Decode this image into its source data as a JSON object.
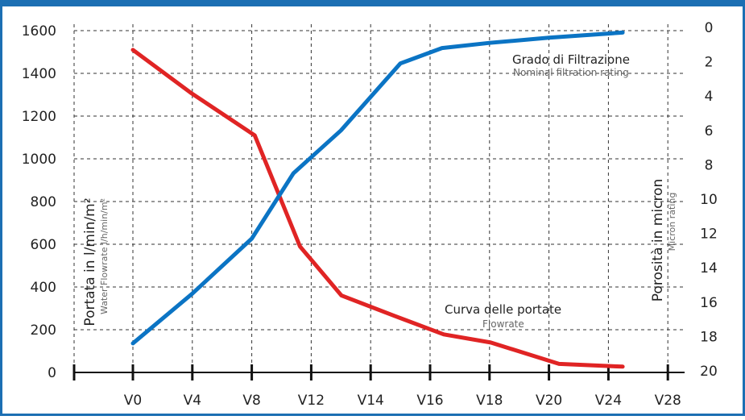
{
  "chart_data": {
    "type": "line",
    "categories": [
      "V0",
      "V4",
      "V8",
      "V12",
      "V14",
      "V16",
      "V18",
      "V20",
      "V24",
      "V28"
    ],
    "yleft": {
      "label": "Portata in l/min/m²",
      "sublabel": "Water Flowrate l/h/min/m²",
      "ticks": [
        0,
        200,
        400,
        600,
        800,
        1000,
        1200,
        1400,
        1600
      ],
      "ylim": [
        0,
        1600
      ]
    },
    "yright": {
      "label": "Porosità in micron",
      "sublabel": "Micron rating",
      "ticks": [
        0,
        2,
        4,
        6,
        8,
        10,
        12,
        14,
        16,
        18,
        20
      ],
      "ylim": [
        0,
        20
      ],
      "inverted": true
    },
    "series": [
      {
        "name": "Curva delle portate",
        "subname": "Flowrate",
        "axis": "left",
        "color": "#e02424",
        "x": [
          0,
          0.97,
          2.05,
          2.81,
          3.51,
          4.4,
          5.23,
          6.02,
          7.17,
          8.24
        ],
        "y": [
          1510,
          1310,
          1110,
          590,
          360,
          265,
          178,
          140,
          40,
          27
        ]
      },
      {
        "name": "Grado di Filtrazione",
        "subname": "Nominal filtration rating",
        "axis": "right",
        "color": "#0b74c4",
        "x": [
          0,
          1.0,
          2.0,
          2.7,
          3.5,
          4.5,
          5.2,
          6.0,
          7.0,
          8.24
        ],
        "y": [
          18.4,
          15.5,
          12.3,
          8.5,
          6.0,
          2.1,
          1.2,
          0.9,
          0.6,
          0.3
        ]
      }
    ],
    "grid": true,
    "frame_color": "#1c6fb3"
  }
}
